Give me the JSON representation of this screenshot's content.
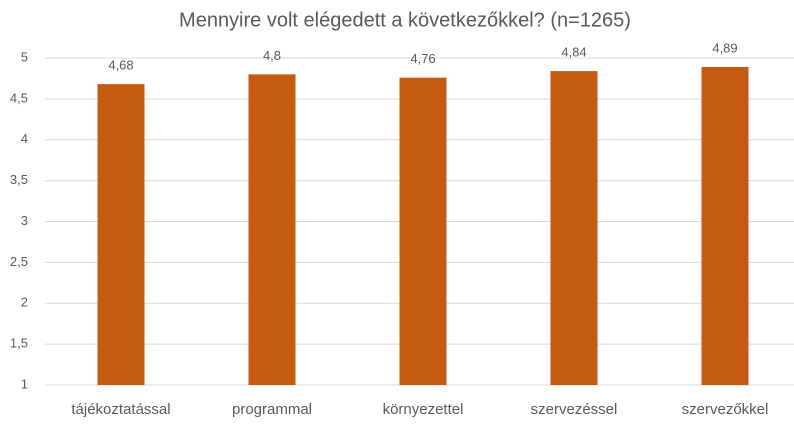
{
  "chart_data": {
    "type": "bar",
    "title": "Mennyire volt elégedett a következőkkel? (n=1265)",
    "categories": [
      "tájékoztatással",
      "programmal",
      "környezettel",
      "szervezéssel",
      "szervezőkkel"
    ],
    "values": [
      4.68,
      4.8,
      4.76,
      4.84,
      4.89
    ],
    "value_labels": [
      "4,68",
      "4,8",
      "4,76",
      "4,84",
      "4,89"
    ],
    "color": "#c55a11",
    "ylim": [
      1,
      5
    ],
    "yticks": [
      1,
      {
        "value": 1.5,
        "label": "1,5"
      },
      2,
      {
        "value": 2.5,
        "label": "2,5"
      },
      3,
      {
        "value": 3.5,
        "label": "3,5"
      },
      4,
      {
        "value": 4.5,
        "label": "4,5"
      },
      5
    ],
    "grid": true
  }
}
